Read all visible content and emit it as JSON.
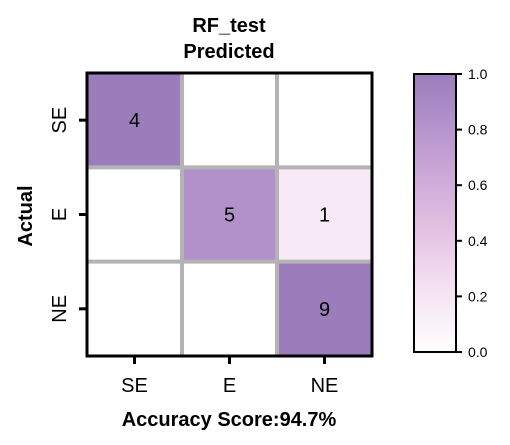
{
  "chart_data": {
    "type": "heatmap",
    "title": "RF_test",
    "subtitle": "Predicted",
    "xlabel": "Accuracy Score:94.7%",
    "ylabel": "Actual",
    "x_categories": [
      "SE",
      "E",
      "NE"
    ],
    "y_categories": [
      "SE",
      "E",
      "NE"
    ],
    "counts": [
      [
        4,
        0,
        0
      ],
      [
        0,
        5,
        1
      ],
      [
        0,
        0,
        9
      ]
    ],
    "values": [
      [
        1.0,
        0.0,
        0.0
      ],
      [
        0.0,
        0.83,
        0.17
      ],
      [
        0.0,
        0.0,
        1.0
      ]
    ],
    "show_zero_labels": false,
    "colorbar": {
      "range": [
        0.0,
        1.0
      ],
      "ticks": [
        "0.0",
        "0.2",
        "0.4",
        "0.6",
        "0.8",
        "1.0"
      ],
      "colors": [
        "#ffffff",
        "#f3def0",
        "#dcb9de",
        "#bd9ad1",
        "#9b7dbc"
      ]
    },
    "grid_color": "#b3b3b3"
  }
}
